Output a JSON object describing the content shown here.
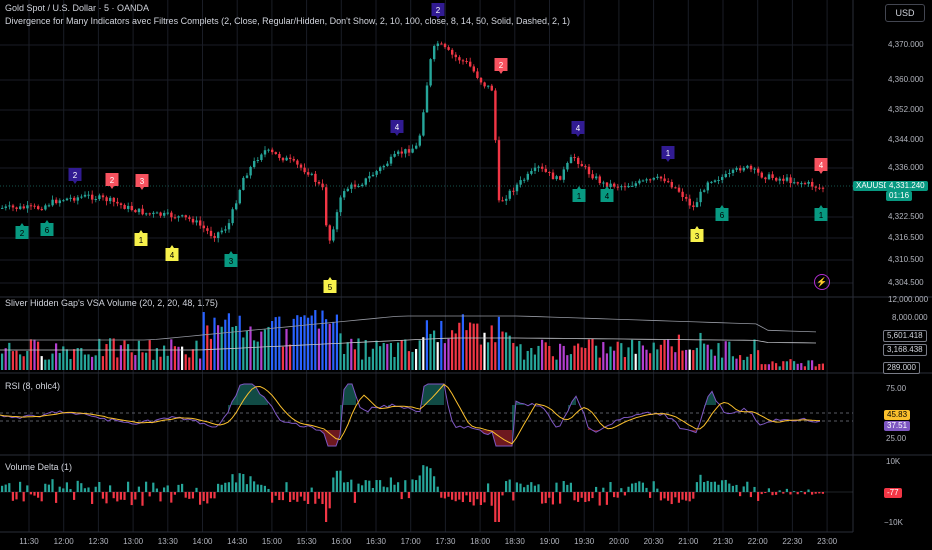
{
  "header": {
    "symbol_line": "Gold Spot / U.S. Dollar · 5 · OANDA",
    "indicator_line": "Divergence for Many Indicators avec Filtres Complets (2, Close, Regular/Hidden, Don't Show, 2, 10, 100, close, 8, 14, 50, Solid, Dashed, 2, 1)",
    "currency_button": "USD"
  },
  "price_axis": {
    "ticks": [
      "4,370.000",
      "4,360.000",
      "4,352.000",
      "4,344.000",
      "4,336.000",
      "4,322.500",
      "4,316.500",
      "4,310.500",
      "4,304.500"
    ],
    "symbol_tag": "XAUUSD",
    "last_price": "4,331.240",
    "countdown": "01:16"
  },
  "volume_pane": {
    "legend": "Sliver Hidden Gap's VSA Volume (20, 2, 20, 48, 1.75)",
    "ticks": [
      "12,000.000",
      "8,000.000"
    ],
    "labels": [
      "5,601.418",
      "3,168.438",
      "289.000"
    ]
  },
  "rsi_pane": {
    "legend": "RSI (8, ohlc4)",
    "ticks": [
      "75.00",
      "25.00"
    ],
    "labels": [
      "45.83",
      "37.51"
    ]
  },
  "delta_pane": {
    "legend": "Volume Delta (1)",
    "ticks": [
      "10K",
      "−10K"
    ],
    "label": "-77"
  },
  "time_axis": [
    "11:30",
    "12:00",
    "12:30",
    "13:00",
    "13:30",
    "14:00",
    "14:30",
    "15:00",
    "15:30",
    "16:00",
    "16:30",
    "17:00",
    "17:30",
    "18:00",
    "18:30",
    "19:00",
    "19:30",
    "20:00",
    "20:30",
    "21:00",
    "21:30",
    "22:00",
    "22:30",
    "23:00"
  ],
  "divergence_markers": [
    {
      "text": "2",
      "kind": "hidden-bear"
    },
    {
      "text": "2",
      "kind": "bear"
    },
    {
      "text": "3",
      "kind": "bear"
    },
    {
      "text": "2",
      "kind": "bull"
    },
    {
      "text": "6",
      "kind": "bull"
    },
    {
      "text": "1",
      "kind": "hidden-bull"
    },
    {
      "text": "4",
      "kind": "hidden-bull"
    },
    {
      "text": "3",
      "kind": "bull"
    },
    {
      "text": "5",
      "kind": "hidden-bull"
    },
    {
      "text": "4",
      "kind": "hidden-bear"
    },
    {
      "text": "2",
      "kind": "hidden-bear"
    },
    {
      "text": "2",
      "kind": "bear"
    },
    {
      "text": "4",
      "kind": "hidden-bear"
    },
    {
      "text": "1",
      "kind": "bull"
    },
    {
      "text": "4",
      "kind": "bull"
    },
    {
      "text": "1",
      "kind": "hidden-bear"
    },
    {
      "text": "3",
      "kind": "hidden-bull"
    },
    {
      "text": "6",
      "kind": "bull"
    },
    {
      "text": "4",
      "kind": "bear"
    },
    {
      "text": "1",
      "kind": "bull"
    }
  ],
  "colors": {
    "up": "#26a69a",
    "down": "#f23645",
    "bull_marker": "#089981",
    "bear_marker": "#f7525f",
    "hidden_bull_marker": "#f7f14b",
    "hidden_bear_marker": "#311b92",
    "volume_blue": "#2962ff",
    "volume_purple": "#b23fd0",
    "rsi": "#7e57c2",
    "rsi_ma": "#fbc02d"
  },
  "icons": {
    "alert": "bolt-icon"
  }
}
